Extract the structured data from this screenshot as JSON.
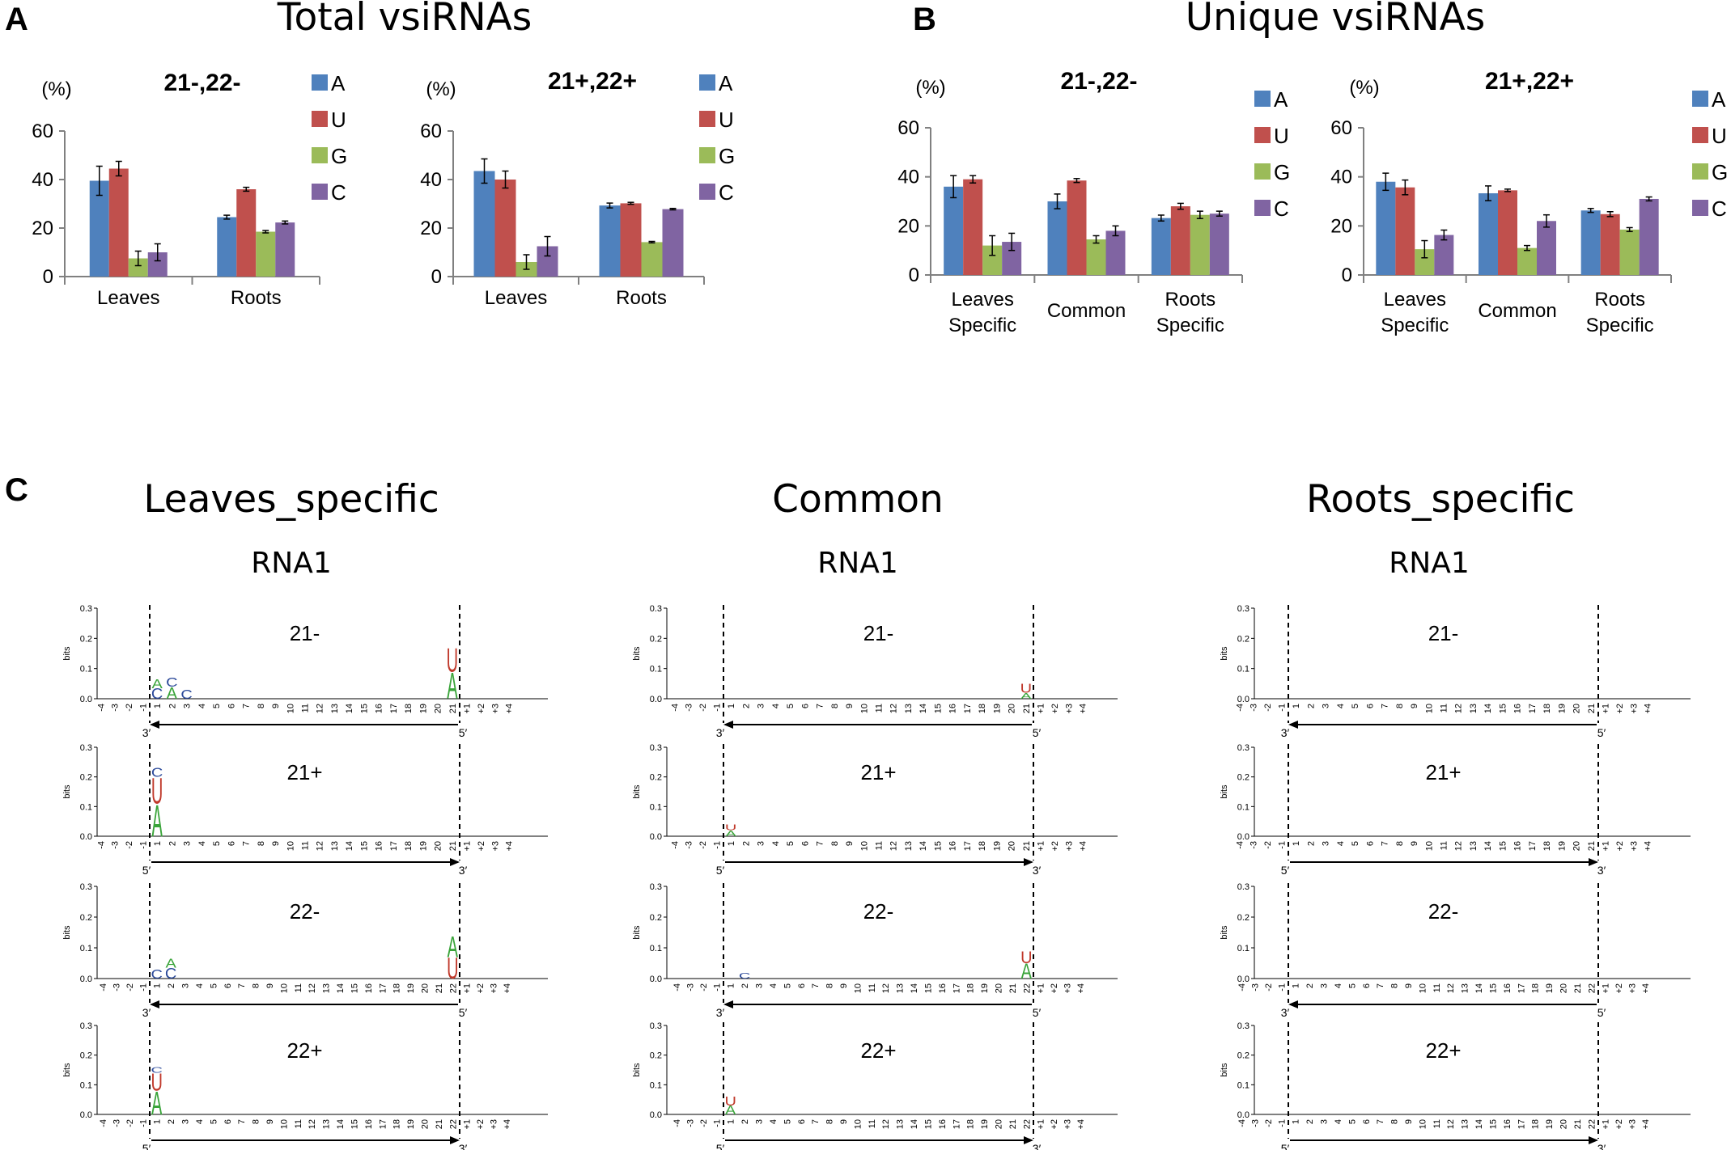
{
  "panels": {
    "A": {
      "label": "A",
      "title": "Total vsiRNAs"
    },
    "B": {
      "label": "B",
      "title": "Unique vsiRNAs"
    },
    "C": {
      "label": "C"
    }
  },
  "colors": {
    "A": "#4f81bd",
    "U": "#c0504d",
    "G": "#9bbb59",
    "C": "#8064a2"
  },
  "chart_data": [
    {
      "type": "bar",
      "id": "a1",
      "title": "21-,22-",
      "ylabel": "(%)",
      "ylim": [
        0,
        60
      ],
      "yticks": [
        0,
        20,
        40,
        60
      ],
      "categories": [
        "Leaves",
        "Roots"
      ],
      "series": [
        {
          "name": "A",
          "values": [
            39.5,
            24.5
          ],
          "errors": [
            6,
            0.8
          ]
        },
        {
          "name": "U",
          "values": [
            44.5,
            36
          ],
          "errors": [
            3,
            0.8
          ]
        },
        {
          "name": "G",
          "values": [
            7.5,
            18.5
          ],
          "errors": [
            3,
            0.5
          ]
        },
        {
          "name": "C",
          "values": [
            10,
            22.3
          ],
          "errors": [
            3.5,
            0.6
          ]
        }
      ]
    },
    {
      "type": "bar",
      "id": "a2",
      "title": "21+,22+",
      "ylabel": "(%)",
      "ylim": [
        0,
        60
      ],
      "yticks": [
        0,
        20,
        40,
        60
      ],
      "categories": [
        "Leaves",
        "Roots"
      ],
      "series": [
        {
          "name": "A",
          "values": [
            43.5,
            29.3
          ],
          "errors": [
            5,
            1
          ]
        },
        {
          "name": "U",
          "values": [
            40,
            30.2
          ],
          "errors": [
            3.5,
            0.4
          ]
        },
        {
          "name": "G",
          "values": [
            6,
            14.2
          ],
          "errors": [
            3,
            0.3
          ]
        },
        {
          "name": "C",
          "values": [
            12.5,
            27.8
          ],
          "errors": [
            4,
            0.3
          ]
        }
      ]
    },
    {
      "type": "bar",
      "id": "b1",
      "title": "21-,22-",
      "ylabel": "(%)",
      "ylim": [
        0,
        60
      ],
      "yticks": [
        0,
        20,
        40,
        60
      ],
      "categories": [
        [
          "Leaves",
          "Specific"
        ],
        [
          "Common"
        ],
        [
          "Roots",
          "Specific"
        ]
      ],
      "series": [
        {
          "name": "A",
          "values": [
            36,
            30,
            23.2
          ],
          "errors": [
            4.5,
            3,
            1.2
          ]
        },
        {
          "name": "U",
          "values": [
            39,
            38.5,
            28
          ],
          "errors": [
            1.5,
            0.8,
            1.2
          ]
        },
        {
          "name": "G",
          "values": [
            12,
            14.5,
            24.5
          ],
          "errors": [
            4,
            1.5,
            1.5
          ]
        },
        {
          "name": "C",
          "values": [
            13.5,
            18,
            25
          ],
          "errors": [
            3.5,
            2,
            1
          ]
        }
      ]
    },
    {
      "type": "bar",
      "id": "b2",
      "title": "21+,22+",
      "ylabel": "(%)",
      "ylim": [
        0,
        60
      ],
      "yticks": [
        0,
        20,
        40,
        60
      ],
      "categories": [
        [
          "Leaves",
          "Specific"
        ],
        [
          "Common"
        ],
        [
          "Roots",
          "Specific"
        ]
      ],
      "series": [
        {
          "name": "A",
          "values": [
            38,
            33.3,
            26.3
          ],
          "errors": [
            3.5,
            3,
            0.8
          ]
        },
        {
          "name": "U",
          "values": [
            35.7,
            34.5,
            24.8
          ],
          "errors": [
            3,
            0.5,
            1
          ]
        },
        {
          "name": "G",
          "values": [
            10.5,
            11,
            18.5
          ],
          "errors": [
            3.5,
            1,
            0.8
          ]
        },
        {
          "name": "C",
          "values": [
            16.3,
            22,
            31
          ],
          "errors": [
            2,
            2.5,
            0.8
          ]
        }
      ]
    },
    {
      "type": "sequence-logo",
      "columns": [
        "Leaves_specific",
        "Common",
        "Roots_specific"
      ],
      "rna": "RNA1",
      "rows": [
        "21-",
        "21+",
        "22-",
        "22+"
      ],
      "ylabel": "bits",
      "ylim": [
        0,
        0.3
      ],
      "yticks": [
        "0.3",
        "0.2",
        "0.1",
        "0.0"
      ],
      "xticks21": [
        "-4",
        "-3",
        "-2",
        "-1",
        "1",
        "2",
        "3",
        "4",
        "5",
        "6",
        "7",
        "8",
        "9",
        "10",
        "11",
        "12",
        "13",
        "14",
        "15",
        "16",
        "17",
        "18",
        "19",
        "20",
        "21",
        "+1",
        "+2",
        "+3",
        "+4"
      ],
      "xticks22": [
        "-4",
        "-3",
        "-2",
        "-1",
        "1",
        "2",
        "3",
        "4",
        "5",
        "6",
        "7",
        "8",
        "9",
        "10",
        "11",
        "12",
        "13",
        "14",
        "15",
        "16",
        "17",
        "18",
        "19",
        "20",
        "21",
        "22",
        "+1",
        "+2",
        "+3",
        "+4"
      ],
      "arrow_ends": {
        "left_minus": "3′",
        "right_minus": "5′",
        "left_plus": "5′",
        "right_plus": "3′"
      },
      "logos": {
        "Leaves_specific": {
          "21-": [
            [
              1,
              "C",
              0.035
            ],
            [
              1,
              "A",
              0.03
            ],
            [
              2,
              "A",
              0.04
            ],
            [
              2,
              "C",
              0.03
            ],
            [
              3,
              "C",
              0.03
            ],
            [
              21,
              "A",
              0.09
            ],
            [
              21,
              "U",
              0.08
            ]
          ],
          "21+": [
            [
              1,
              "A",
              0.11
            ],
            [
              1,
              "U",
              0.09
            ],
            [
              1,
              "C",
              0.03
            ]
          ],
          "22-": [
            [
              1,
              "C",
              0.03
            ],
            [
              2,
              "C",
              0.035
            ],
            [
              2,
              "A",
              0.03
            ],
            [
              22,
              "U",
              0.07
            ],
            [
              22,
              "A",
              0.07
            ]
          ],
          "22+": [
            [
              1,
              "A",
              0.08
            ],
            [
              1,
              "U",
              0.06
            ],
            [
              1,
              "C",
              0.02
            ]
          ]
        },
        "Common": {
          "21-": [
            [
              21,
              "A",
              0.02
            ],
            [
              21,
              "U",
              0.03
            ]
          ],
          "21+": [
            [
              1,
              "A",
              0.02
            ],
            [
              1,
              "U",
              0.02
            ]
          ],
          "22-": [
            [
              2,
              "C",
              0.02
            ],
            [
              22,
              "A",
              0.05
            ],
            [
              22,
              "U",
              0.04
            ]
          ],
          "22+": [
            [
              1,
              "A",
              0.03
            ],
            [
              1,
              "U",
              0.03
            ]
          ]
        },
        "Roots_specific": {
          "21-": [],
          "21+": [],
          "22-": [],
          "22+": []
        }
      }
    }
  ]
}
